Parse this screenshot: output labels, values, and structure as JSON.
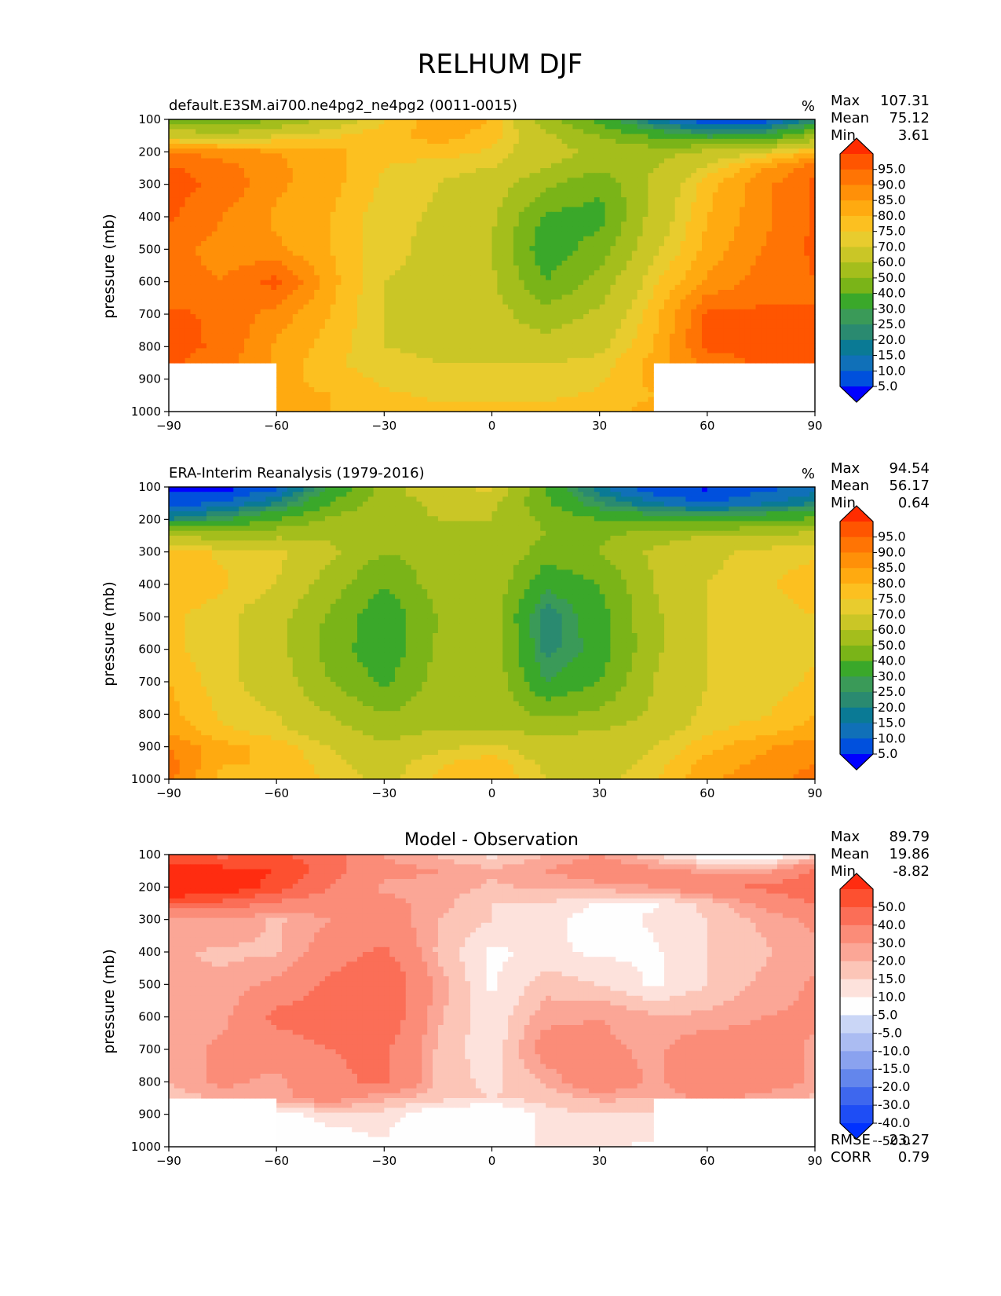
{
  "figure": {
    "title": "RELHUM DJF"
  },
  "chart_data": [
    {
      "type": "heatmap",
      "title": "default.E3SM.ai700.ne4pg2_ne4pg2 (0011-0015)",
      "units": "%",
      "xlabel": "",
      "ylabel": "pressure (mb)",
      "xlim": [
        -90,
        90
      ],
      "ylim": [
        1000,
        100
      ],
      "x_ticks": [
        "−90",
        "−60",
        "−30",
        "0",
        "30",
        "60",
        "90"
      ],
      "y_ticks": [
        "100",
        "200",
        "300",
        "400",
        "500",
        "600",
        "700",
        "800",
        "900",
        "1000"
      ],
      "x": [
        -90,
        -75,
        -60,
        -45,
        -30,
        -15,
        0,
        15,
        30,
        45,
        60,
        75,
        90
      ],
      "y": [
        100,
        150,
        200,
        250,
        300,
        400,
        500,
        600,
        700,
        800,
        850,
        900,
        950,
        1000
      ],
      "z": [
        [
          45,
          40,
          50,
          64,
          74,
          84,
          80,
          55,
          35,
          15,
          5,
          5,
          20
        ],
        [
          68,
          64,
          70,
          74,
          78,
          82,
          78,
          62,
          50,
          38,
          28,
          30,
          52
        ],
        [
          90,
          88,
          85,
          82,
          76,
          78,
          74,
          64,
          58,
          56,
          62,
          70,
          80
        ],
        [
          96,
          92,
          86,
          82,
          75,
          72,
          70,
          60,
          52,
          60,
          72,
          84,
          94
        ],
        [
          97,
          94,
          86,
          82,
          74,
          70,
          66,
          52,
          42,
          62,
          78,
          88,
          96
        ],
        [
          96,
          90,
          84,
          80,
          72,
          69,
          62,
          38,
          36,
          64,
          80,
          88,
          96
        ],
        [
          92,
          88,
          86,
          80,
          72,
          68,
          60,
          33,
          45,
          68,
          82,
          90,
          96
        ],
        [
          92,
          90,
          97,
          82,
          70,
          68,
          62,
          40,
          54,
          74,
          86,
          92,
          95
        ],
        [
          96,
          94,
          88,
          80,
          70,
          68,
          64,
          54,
          62,
          78,
          96,
          96,
          95
        ],
        [
          97,
          94,
          84,
          78,
          70,
          68,
          66,
          64,
          68,
          80,
          96,
          97,
          96
        ],
        [
          96,
          92,
          84,
          76,
          72,
          70,
          70,
          70,
          72,
          82,
          92,
          96,
          96
        ],
        [
          null,
          null,
          82,
          78,
          74,
          72,
          72,
          72,
          74,
          82,
          null,
          null,
          96
        ],
        [
          null,
          null,
          82,
          80,
          76,
          74,
          74,
          74,
          76,
          80,
          null,
          null,
          96
        ],
        [
          null,
          null,
          84,
          80,
          78,
          76,
          76,
          76,
          78,
          82,
          null,
          null,
          96
        ]
      ],
      "colorbar": {
        "levels": [
          5,
          10,
          15,
          20,
          25,
          30,
          40,
          50,
          60,
          70,
          75,
          80,
          85,
          90,
          95
        ],
        "tick_labels": [
          "95.0",
          "90.0",
          "85.0",
          "80.0",
          "75.0",
          "70.0",
          "60.0",
          "50.0",
          "40.0",
          "30.0",
          "25.0",
          "20.0",
          "15.0",
          "10.0",
          "5.0"
        ],
        "extend": "both",
        "colors": [
          "#0000ff",
          "#0050dd",
          "#1070b8",
          "#0a7a95",
          "#2a8a70",
          "#3a9a58",
          "#3aa82a",
          "#7ab418",
          "#a4be1c",
          "#cac626",
          "#e8cc2e",
          "#fcc020",
          "#ffaa10",
          "#ff9008",
          "#ff7404",
          "#ff5500",
          "#ff2c00"
        ]
      },
      "stats": {
        "Max": "107.31",
        "Mean": "75.12",
        "Min": "3.61"
      }
    },
    {
      "type": "heatmap",
      "title": "ERA-Interim Reanalysis (1979-2016)",
      "units": "%",
      "xlabel": "",
      "ylabel": "pressure (mb)",
      "xlim": [
        -90,
        90
      ],
      "ylim": [
        1000,
        100
      ],
      "x_ticks": [
        "−90",
        "−60",
        "−30",
        "0",
        "30",
        "60",
        "90"
      ],
      "y_ticks": [
        "100",
        "200",
        "300",
        "400",
        "500",
        "600",
        "700",
        "800",
        "900",
        "1000"
      ],
      "x": [
        -90,
        -75,
        -60,
        -45,
        -30,
        -15,
        0,
        15,
        30,
        45,
        60,
        75,
        90
      ],
      "y": [
        100,
        150,
        200,
        250,
        300,
        400,
        500,
        600,
        700,
        800,
        850,
        900,
        950,
        1000
      ],
      "z": [
        [
          3,
          3,
          8,
          30,
          55,
          70,
          72,
          40,
          15,
          5,
          4,
          8,
          12
        ],
        [
          8,
          10,
          20,
          40,
          55,
          62,
          62,
          42,
          25,
          15,
          10,
          14,
          20
        ],
        [
          20,
          28,
          40,
          52,
          58,
          60,
          60,
          48,
          40,
          36,
          34,
          38,
          42
        ],
        [
          60,
          55,
          58,
          58,
          52,
          55,
          60,
          50,
          48,
          56,
          60,
          62,
          64
        ],
        [
          78,
          74,
          72,
          62,
          50,
          55,
          60,
          45,
          50,
          62,
          68,
          72,
          74
        ],
        [
          80,
          76,
          70,
          55,
          40,
          55,
          58,
          32,
          40,
          60,
          70,
          74,
          78
        ],
        [
          76,
          72,
          64,
          48,
          32,
          50,
          56,
          20,
          36,
          58,
          70,
          72,
          75
        ],
        [
          76,
          72,
          64,
          46,
          32,
          52,
          56,
          22,
          34,
          58,
          70,
          72,
          74
        ],
        [
          80,
          72,
          66,
          50,
          38,
          54,
          58,
          30,
          40,
          60,
          70,
          72,
          76
        ],
        [
          82,
          74,
          70,
          60,
          50,
          56,
          56,
          48,
          52,
          62,
          72,
          74,
          80
        ],
        [
          84,
          76,
          72,
          64,
          56,
          60,
          60,
          58,
          60,
          66,
          74,
          78,
          82
        ],
        [
          90,
          82,
          78,
          70,
          62,
          68,
          72,
          64,
          64,
          70,
          78,
          84,
          88
        ],
        [
          92,
          80,
          80,
          72,
          66,
          74,
          78,
          68,
          66,
          72,
          82,
          86,
          90
        ],
        [
          92,
          78,
          80,
          74,
          68,
          76,
          80,
          70,
          68,
          74,
          84,
          88,
          92
        ]
      ],
      "colorbar": {
        "levels": [
          5,
          10,
          15,
          20,
          25,
          30,
          40,
          50,
          60,
          70,
          75,
          80,
          85,
          90,
          95
        ],
        "tick_labels": [
          "95.0",
          "90.0",
          "85.0",
          "80.0",
          "75.0",
          "70.0",
          "60.0",
          "50.0",
          "40.0",
          "30.0",
          "25.0",
          "20.0",
          "15.0",
          "10.0",
          "5.0"
        ],
        "extend": "both",
        "colors": [
          "#0000ff",
          "#0050dd",
          "#1070b8",
          "#0a7a95",
          "#2a8a70",
          "#3a9a58",
          "#3aa82a",
          "#7ab418",
          "#a4be1c",
          "#cac626",
          "#e8cc2e",
          "#fcc020",
          "#ffaa10",
          "#ff9008",
          "#ff7404",
          "#ff5500",
          "#ff2c00"
        ]
      },
      "stats": {
        "Max": "94.54",
        "Mean": "56.17",
        "Min": "0.64"
      }
    },
    {
      "type": "heatmap",
      "title": "Model - Observation",
      "units": "",
      "xlabel": "",
      "ylabel": "pressure (mb)",
      "xlim": [
        -90,
        90
      ],
      "ylim": [
        1000,
        100
      ],
      "x_ticks": [
        "−90",
        "−60",
        "−30",
        "0",
        "30",
        "60",
        "90"
      ],
      "y_ticks": [
        "100",
        "200",
        "300",
        "400",
        "500",
        "600",
        "700",
        "800",
        "900",
        "1000"
      ],
      "x": [
        -90,
        -75,
        -60,
        -45,
        -30,
        -15,
        0,
        15,
        30,
        45,
        60,
        75,
        90
      ],
      "y": [
        100,
        150,
        200,
        250,
        300,
        400,
        500,
        600,
        700,
        800,
        850,
        900,
        950,
        1000
      ],
      "z": [
        [
          42,
          37,
          42,
          34,
          19,
          14,
          8,
          15,
          20,
          10,
          1,
          -3,
          8
        ],
        [
          60,
          54,
          50,
          34,
          23,
          20,
          16,
          20,
          25,
          23,
          18,
          16,
          32
        ],
        [
          70,
          60,
          45,
          30,
          18,
          18,
          14,
          16,
          18,
          20,
          28,
          32,
          38
        ],
        [
          36,
          37,
          28,
          24,
          23,
          17,
          10,
          10,
          4,
          4,
          12,
          22,
          30
        ],
        [
          19,
          20,
          14,
          20,
          24,
          15,
          10,
          7,
          2,
          6,
          10,
          16,
          22
        ],
        [
          16,
          14,
          14,
          25,
          32,
          14,
          4,
          6,
          4,
          4,
          10,
          14,
          18
        ],
        [
          16,
          16,
          22,
          32,
          40,
          18,
          4,
          13,
          10,
          4,
          10,
          16,
          21
        ],
        [
          16,
          18,
          33,
          36,
          38,
          16,
          6,
          18,
          20,
          16,
          16,
          20,
          21
        ],
        [
          16,
          22,
          24,
          30,
          32,
          14,
          6,
          24,
          22,
          18,
          26,
          24,
          19
        ],
        [
          15,
          22,
          18,
          28,
          32,
          14,
          8,
          16,
          28,
          18,
          26,
          25,
          19
        ],
        [
          12,
          16,
          18,
          24,
          16,
          12,
          10,
          12,
          16,
          16,
          22,
          18,
          14
        ],
        [
          null,
          null,
          2,
          8,
          8,
          0,
          -4,
          8,
          10,
          8,
          null,
          null,
          8
        ],
        [
          null,
          null,
          2,
          4,
          6,
          -2,
          0,
          6,
          8,
          6,
          null,
          null,
          6
        ],
        [
          null,
          null,
          1,
          3,
          4,
          0,
          2,
          6,
          6,
          4,
          null,
          null,
          4
        ]
      ],
      "colorbar": {
        "levels": [
          -50,
          -40,
          -30,
          -20,
          -15,
          -10,
          -5,
          5,
          10,
          15,
          20,
          30,
          40,
          50
        ],
        "tick_labels": [
          "50.0",
          "40.0",
          "30.0",
          "20.0",
          "15.0",
          "10.0",
          "5.0",
          "-5.0",
          "-10.0",
          "-15.0",
          "-20.0",
          "-30.0",
          "-40.0",
          "-50.0"
        ],
        "extend": "both",
        "colors": [
          "#0031ff",
          "#1e4df5",
          "#3e67ee",
          "#6386ec",
          "#8aa2ef",
          "#abbcf2",
          "#cad6f6",
          "#fefefe",
          "#fde2dc",
          "#fcc5b7",
          "#fba696",
          "#fb8c78",
          "#fb6e57",
          "#fd5030",
          "#ff2c10"
        ]
      },
      "stats": {
        "Max": "89.79",
        "Mean": "19.86",
        "Min": "-8.82"
      },
      "footer": {
        "RMSE": "23.27",
        "CORR": "0.79"
      }
    }
  ]
}
